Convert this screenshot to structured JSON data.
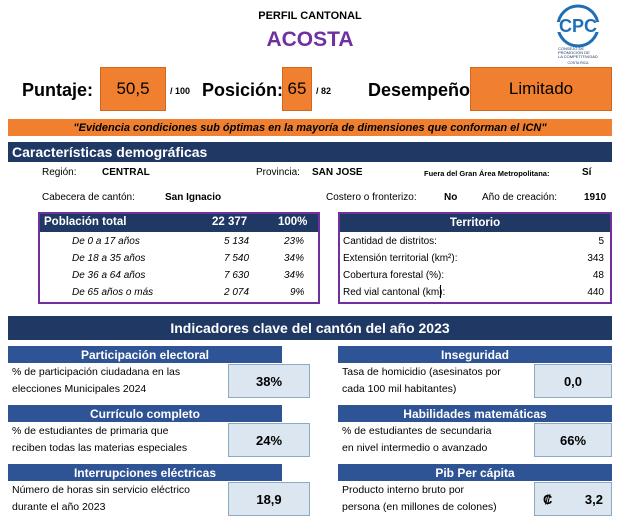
{
  "header": {
    "subtitle": "PERFIL CANTONAL",
    "canton_name": "ACOSTA"
  },
  "logo": {
    "text": "CPC",
    "caption_line1": "CONSEJO DE",
    "caption_line2": "PROMOCIÓN DE",
    "caption_line3": "LA COMPETITIVIDAD",
    "caption_line4": "COSTA RICA"
  },
  "score": {
    "puntaje_label": "Puntaje:",
    "puntaje_value": "50,5",
    "puntaje_denominator": "/ 100",
    "posicion_label": "Posición:",
    "posicion_value": "65",
    "posicion_denominator": "/ 82",
    "desempeno_label": "Desempeño:",
    "desempeno_value": "Limitado"
  },
  "quote": "\"Evidencia condiciones sub óptimas en la mayoría de dimensiones que conforman el ICN\"",
  "demographics": {
    "title": "Características demográficas",
    "region_label": "Región:",
    "region_value": "CENTRAL",
    "provincia_label": "Provincia:",
    "provincia_value": "SAN JOSE",
    "gam_label": "Fuera del Gran Área Metropolitana:",
    "gam_value": "Sí",
    "cabecera_label": "Cabecera de cantón:",
    "cabecera_value": "San Ignacio",
    "costero_label": "Costero o fronterizo:",
    "costero_value": "No",
    "anio_label": "Año de creación:",
    "anio_value": "1910"
  },
  "population": {
    "header_label": "Población total",
    "header_value": "22 377",
    "header_pct": "100%",
    "rows": [
      {
        "label": "De 0 a 17 años",
        "value": "5 134",
        "pct": "23%"
      },
      {
        "label": "De 18 a 35 años",
        "value": "7 540",
        "pct": "34%"
      },
      {
        "label": "De 36 a 64 años",
        "value": "7 630",
        "pct": "34%"
      },
      {
        "label": "De 65 años o más",
        "value": "2 074",
        "pct": "9%"
      }
    ]
  },
  "territory": {
    "header_label": "Territorio",
    "rows": [
      {
        "label": "Cantidad de distritos:",
        "value": "5"
      },
      {
        "label": "Extensión territorial (km²):",
        "value": "343"
      },
      {
        "label": "Cobertura forestal (%):",
        "value": "48"
      },
      {
        "label": "Red vial cantonal (km):",
        "value": "440"
      }
    ]
  },
  "indicators": {
    "title": "Indicadores clave del cantón del año 2023",
    "items": [
      {
        "title": "Participación electoral",
        "line1": "% de participación ciudadana en las",
        "line2": "elecciones Municipales 2024",
        "value": "38%"
      },
      {
        "title": "Inseguridad",
        "line1": "Tasa de homicidio (asesinatos por",
        "line2": "cada 100 mil habitantes)",
        "value": "0,0"
      },
      {
        "title": "Currículo completo",
        "line1": "% de estudiantes de primaria que",
        "line2": "reciben todas las materias especiales",
        "value": "24%"
      },
      {
        "title": "Habilidades matemáticas",
        "line1": "% de estudiantes de secundaria",
        "line2": "en nivel intermedio o avanzado",
        "value": "66%"
      },
      {
        "title": "Interrupciones eléctricas",
        "line1": "Número de horas sin servicio eléctrico",
        "line2": "durante el año 2023",
        "value": "18,9"
      },
      {
        "title": "Pib Per cápita",
        "line1": "Producto interno bruto por",
        "line2": "persona (en millones de colones)",
        "currency": "₡",
        "value": "3,2"
      }
    ]
  }
}
